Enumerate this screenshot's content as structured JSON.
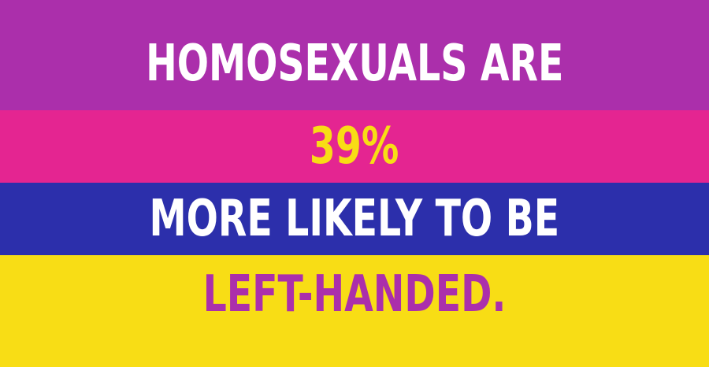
{
  "lines": [
    {
      "text": "HOMOSEXUALS ARE",
      "background": "#ab2fab",
      "color": "#ffffff"
    },
    {
      "text": "39%",
      "background": "#e42591",
      "color": "#f8dd15"
    },
    {
      "text": "MORE LIKELY TO BE",
      "background": "#2c2fab",
      "color": "#ffffff"
    },
    {
      "text": "LEFT-HANDED.",
      "background": "#f8dd15",
      "color": "#ab2fab"
    }
  ]
}
